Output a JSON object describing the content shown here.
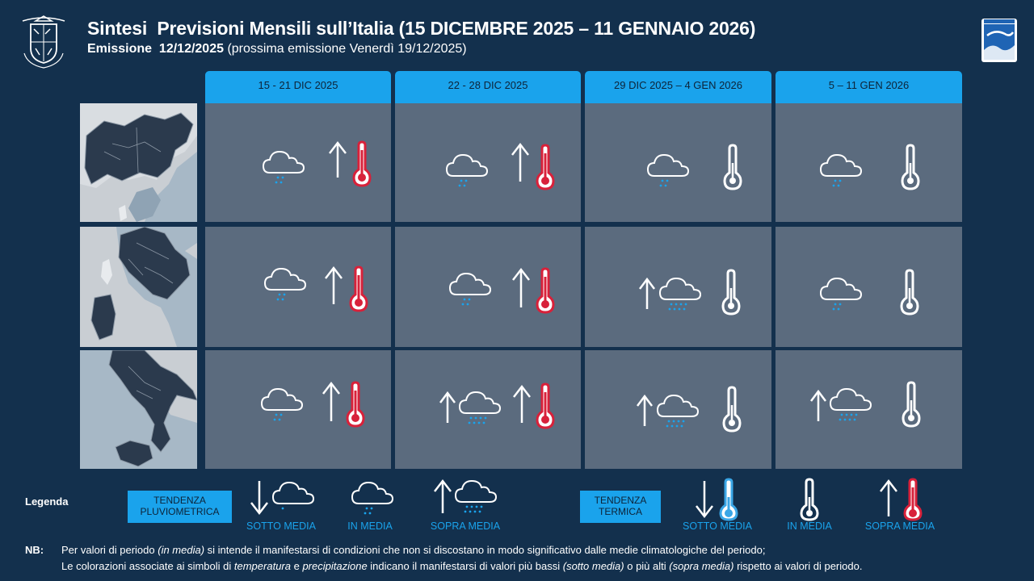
{
  "header": {
    "title": "Sintesi  Previsioni Mensili sull’Italia (15 DICEMBRE 2025 – 11 GENNAIO 2026)",
    "emission_label": "Emissione  12/12/2025",
    "emission_next": " (prossima emissione Venerdì 19/12/2025)"
  },
  "columns": [
    {
      "label": "15 - 21 DIC 2025"
    },
    {
      "label": "22 - 28 DIC 2025"
    },
    {
      "label": "29 DIC 2025 – 4 GEN 2026"
    },
    {
      "label": "5 – 11 GEN 2026"
    }
  ],
  "regions": [
    "north",
    "center",
    "south"
  ],
  "forecast": [
    [
      {
        "precip": "in-media",
        "temp": "sopra-media"
      },
      {
        "precip": "in-media",
        "temp": "sopra-media"
      },
      {
        "precip": "in-media",
        "temp": "in-media"
      },
      {
        "precip": "in-media",
        "temp": "in-media"
      }
    ],
    [
      {
        "precip": "in-media",
        "temp": "sopra-media"
      },
      {
        "precip": "in-media",
        "temp": "sopra-media"
      },
      {
        "precip": "sopra-media",
        "temp": "in-media"
      },
      {
        "precip": "in-media",
        "temp": "in-media"
      }
    ],
    [
      {
        "precip": "in-media",
        "temp": "sopra-media"
      },
      {
        "precip": "sopra-media",
        "temp": "sopra-media"
      },
      {
        "precip": "sopra-media",
        "temp": "in-media"
      },
      {
        "precip": "sopra-media",
        "temp": "in-media"
      }
    ]
  ],
  "legend": {
    "title": "Legenda",
    "precip_box": "TENDENZA PLUVIOMETRICA",
    "temp_box": "TENDENZA TERMICA",
    "captions": {
      "sotto": "SOTTO  MEDIA",
      "in": "IN MEDIA",
      "sopra": "SOPRA MEDIA"
    }
  },
  "notes": {
    "label": "NB:",
    "line1": {
      "a": "Per valori di periodo ",
      "b": "(in media)",
      "c": " si intende il manifestarsi di condizioni che non  si discostano in modo significativo dalle medie climatologiche del periodo;"
    },
    "line2": {
      "a": "Le colorazioni associate ai simboli di ",
      "b": "temperatura",
      "c": " e ",
      "d": "precipitazione",
      "e": " indicano il manifestarsi di valori più bassi ",
      "f": "(sotto media)",
      "g": " o più alti ",
      "h": "(sopra media)",
      "i": " rispetto ai valori di periodo."
    }
  },
  "colors": {
    "background": "#13304d",
    "header_blue": "#1aa3ec",
    "cell_gray": "#5b6b7e",
    "warm_red": "#d8213a",
    "cold_blue": "#3aa6e6",
    "rain_blue": "#1aa3ec"
  }
}
